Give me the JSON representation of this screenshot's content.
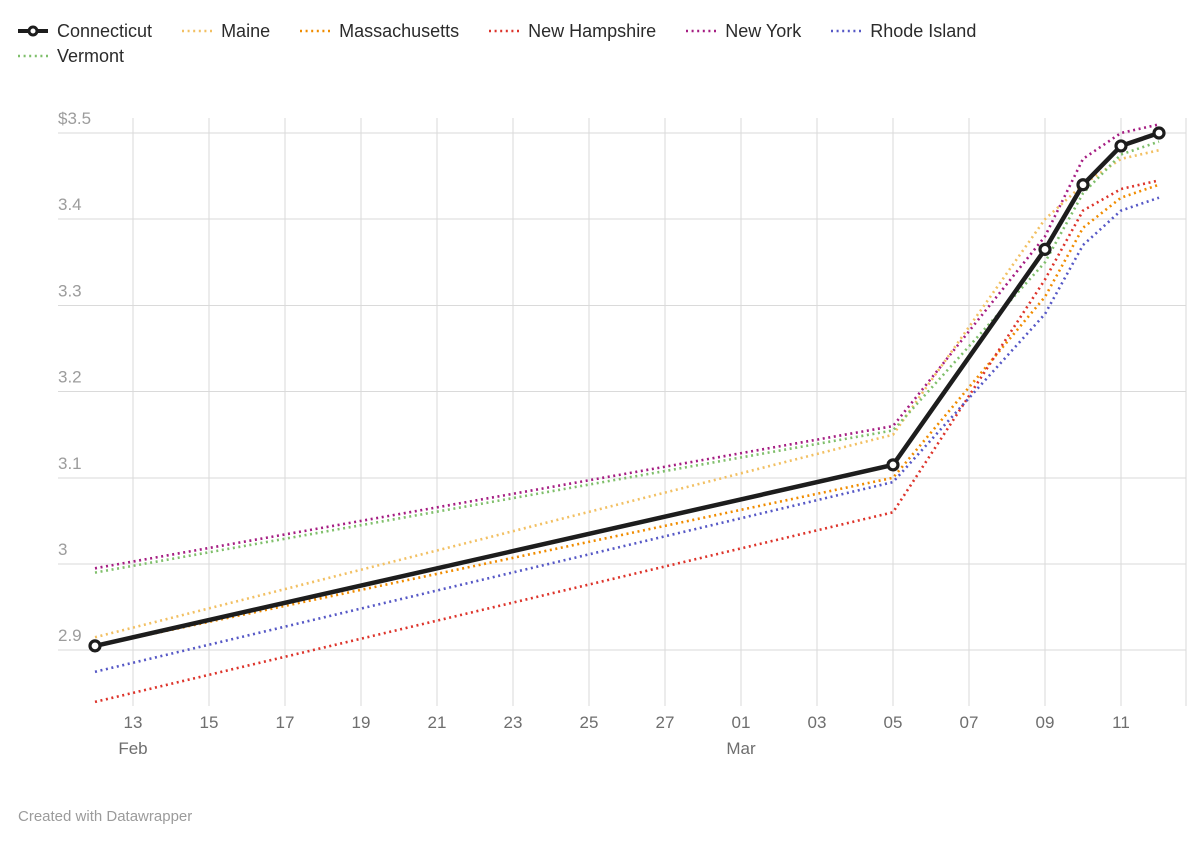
{
  "footer": {
    "credit": "Created with Datawrapper"
  },
  "legend": {
    "rows": [
      [
        "Connecticut",
        "Maine",
        "Massachusetts",
        "New Hampshire",
        "New York",
        "Rhode Island"
      ],
      [
        "Vermont"
      ]
    ]
  },
  "chart_data": {
    "type": "line",
    "title": "",
    "ylabel": "",
    "xlabel": "",
    "unit": "$ (USD)",
    "ylim": [
      2.82,
      3.52
    ],
    "grid": true,
    "legend_position": "top",
    "y_axis": {
      "tick_labels": [
        "$3.5",
        "3.4",
        "3.3",
        "3.2",
        "3.1",
        "3",
        "2.9"
      ],
      "tick_values": [
        3.5,
        3.4,
        3.3,
        3.2,
        3.1,
        3.0,
        2.9
      ]
    },
    "x_axis": {
      "start_date": "Feb 12",
      "end_date": "Mar 12",
      "tick_labels": [
        "13",
        "15",
        "17",
        "19",
        "21",
        "23",
        "25",
        "27",
        "01",
        "03",
        "05",
        "07",
        "09",
        "11"
      ],
      "tick_day_index": [
        1,
        3,
        5,
        7,
        9,
        11,
        13,
        15,
        17,
        19,
        21,
        23,
        25,
        27
      ],
      "month_labels": [
        {
          "label": "Feb",
          "day_index": 1
        },
        {
          "label": "Mar",
          "day_index": 17
        }
      ]
    },
    "x_points": {
      "dates": [
        "Feb 12",
        "Mar 05",
        "Mar 09",
        "Mar 10",
        "Mar 11",
        "Mar 12"
      ],
      "day_index": [
        0,
        21,
        25,
        26,
        27,
        28
      ]
    },
    "series": [
      {
        "name": "Connecticut",
        "color": "#1d1d1d",
        "line": "solid",
        "markers": true,
        "values": [
          2.905,
          3.115,
          3.365,
          3.44,
          3.485,
          3.5
        ]
      },
      {
        "name": "Maine",
        "color": "#f2c063",
        "line": "dotted",
        "markers": false,
        "values": [
          2.915,
          3.15,
          3.4,
          3.44,
          3.47,
          3.48
        ]
      },
      {
        "name": "Massachusetts",
        "color": "#f08c00",
        "line": "dotted",
        "markers": false,
        "values": [
          2.905,
          3.1,
          3.31,
          3.39,
          3.425,
          3.44
        ]
      },
      {
        "name": "New Hampshire",
        "color": "#dd342b",
        "line": "dotted",
        "markers": false,
        "values": [
          2.84,
          3.06,
          3.33,
          3.41,
          3.435,
          3.445
        ]
      },
      {
        "name": "New York",
        "color": "#a51d82",
        "line": "dotted",
        "markers": false,
        "values": [
          2.995,
          3.16,
          3.38,
          3.47,
          3.5,
          3.51
        ]
      },
      {
        "name": "Rhode Island",
        "color": "#5658c6",
        "line": "dotted",
        "markers": false,
        "values": [
          2.875,
          3.095,
          3.29,
          3.37,
          3.41,
          3.425
        ]
      },
      {
        "name": "Vermont",
        "color": "#7fbf6b",
        "line": "dotted",
        "markers": false,
        "values": [
          2.99,
          3.155,
          3.35,
          3.43,
          3.475,
          3.49
        ]
      }
    ]
  }
}
